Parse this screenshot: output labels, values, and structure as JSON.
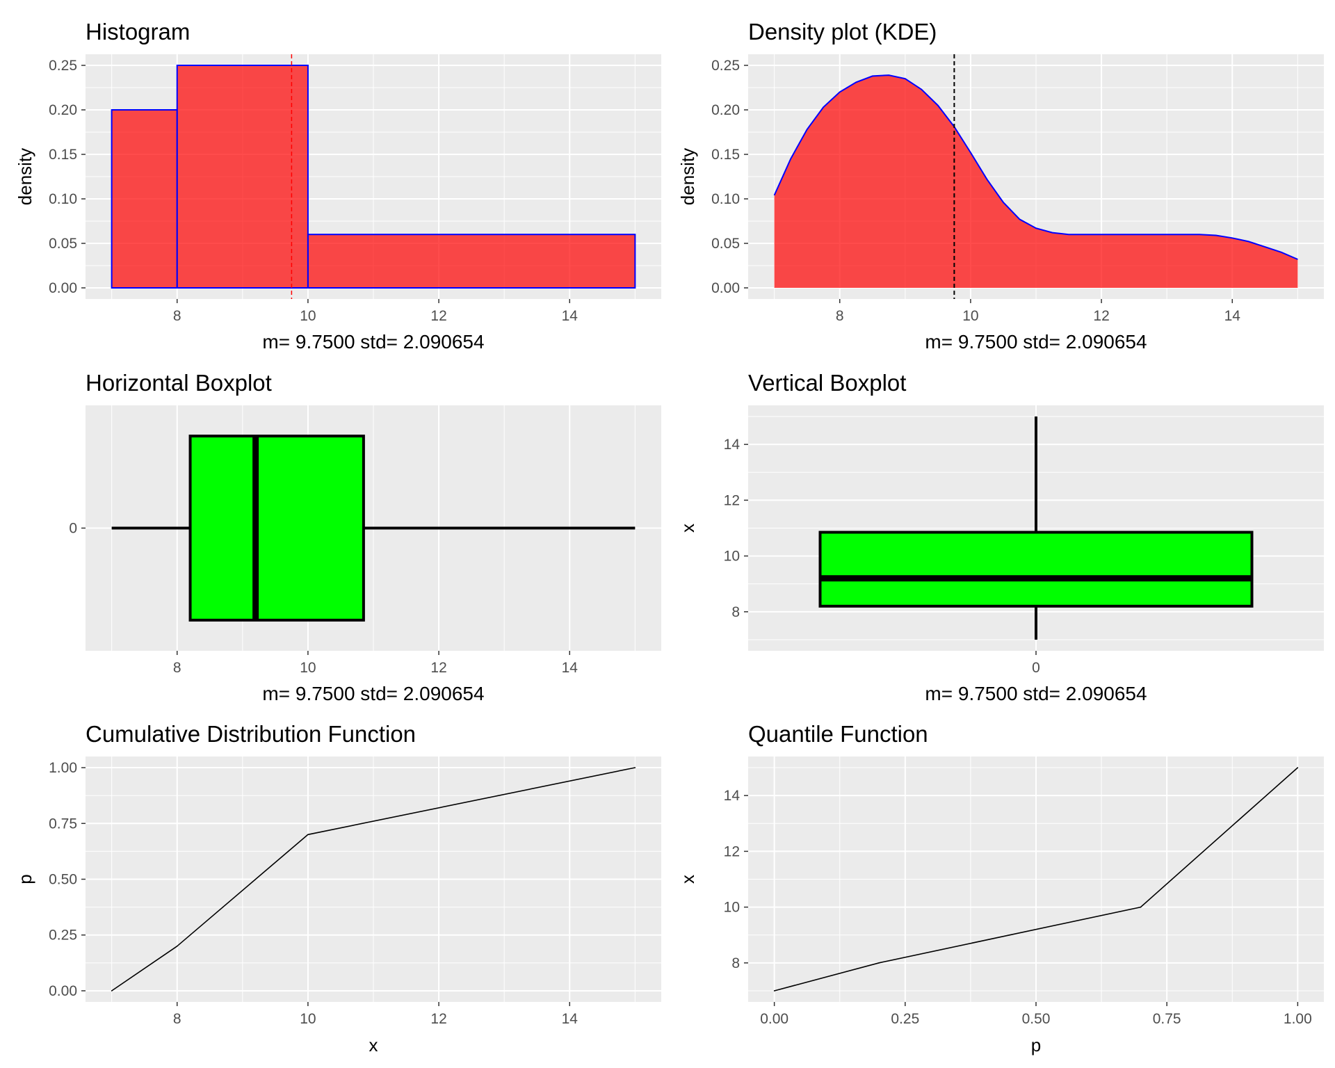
{
  "colors": {
    "panel_bg": "#EBEBEB",
    "grid_major": "#FFFFFF",
    "grid_minor": "#F5F5F5",
    "tick": "#333333",
    "hist_fill": "#FF0000",
    "hist_border": "#0000FF",
    "mean_line_hist": "#FF0000",
    "mean_line_density": "#000000",
    "box_fill": "#00FF00",
    "line": "#000000"
  },
  "chart_data": [
    {
      "id": "histogram",
      "type": "bar",
      "title": "Histogram",
      "xlabel": "m=  9.7500  std=  2.090654",
      "ylabel": "density",
      "xlim": [
        6.6,
        15.4
      ],
      "ylim": [
        -0.0125,
        0.2625
      ],
      "xticks": [
        8,
        10,
        12,
        14
      ],
      "yticks": [
        0.0,
        0.05,
        0.1,
        0.15,
        0.2,
        0.25
      ],
      "ytick_labels": [
        "0.00",
        "0.05",
        "0.10",
        "0.15",
        "0.20",
        "0.25"
      ],
      "bins": [
        {
          "x0": 7,
          "x1": 8,
          "density": 0.2
        },
        {
          "x0": 8,
          "x1": 10,
          "density": 0.25
        },
        {
          "x0": 10,
          "x1": 15,
          "density": 0.06
        }
      ],
      "mean": 9.75,
      "mean_line": "dashed",
      "grid": true
    },
    {
      "id": "density",
      "type": "area",
      "title": "Density plot (KDE)",
      "xlabel": "m=  9.7500  std=  2.090654",
      "ylabel": "density",
      "xlim": [
        6.6,
        15.4
      ],
      "ylim": [
        -0.0125,
        0.2625
      ],
      "xticks": [
        8,
        10,
        12,
        14
      ],
      "yticks": [
        0.0,
        0.05,
        0.1,
        0.15,
        0.2,
        0.25
      ],
      "ytick_labels": [
        "0.00",
        "0.05",
        "0.10",
        "0.15",
        "0.20",
        "0.25"
      ],
      "x": [
        7.0,
        7.25,
        7.5,
        7.75,
        8.0,
        8.25,
        8.5,
        8.75,
        9.0,
        9.25,
        9.5,
        9.75,
        10.0,
        10.25,
        10.5,
        10.75,
        11.0,
        11.25,
        11.5,
        11.75,
        12.0,
        12.5,
        13.0,
        13.5,
        13.75,
        14.0,
        14.25,
        14.5,
        14.75,
        15.0
      ],
      "y": [
        0.104,
        0.145,
        0.178,
        0.203,
        0.22,
        0.231,
        0.238,
        0.239,
        0.235,
        0.223,
        0.205,
        0.181,
        0.152,
        0.122,
        0.096,
        0.077,
        0.067,
        0.062,
        0.06,
        0.06,
        0.06,
        0.06,
        0.06,
        0.06,
        0.059,
        0.056,
        0.052,
        0.046,
        0.04,
        0.032
      ],
      "mean": 9.75,
      "mean_line": "dashed",
      "grid": true
    },
    {
      "id": "hboxplot",
      "type": "boxplot",
      "title": "Horizontal Boxplot",
      "xlabel": "m=  9.7500  std=  2.090654",
      "orientation": "horizontal",
      "xlim": [
        6.6,
        15.4
      ],
      "xticks": [
        8,
        10,
        12,
        14
      ],
      "category_label": "0",
      "whisker_low": 7.0,
      "q1": 8.2,
      "median": 9.2,
      "q3": 10.85,
      "whisker_high": 15.0,
      "grid": true
    },
    {
      "id": "vboxplot",
      "type": "boxplot",
      "title": "Vertical Boxplot",
      "xlabel": "m=  9.7500  std=  2.090654",
      "ylabel": "x",
      "orientation": "vertical",
      "ylim": [
        6.6,
        15.4
      ],
      "yticks": [
        8,
        10,
        12,
        14
      ],
      "category_label": "0",
      "whisker_low": 7.0,
      "q1": 8.2,
      "median": 9.2,
      "q3": 10.85,
      "whisker_high": 15.0,
      "grid": true
    },
    {
      "id": "cdf",
      "type": "line",
      "title": "Cumulative Distribution Function",
      "xlabel": "x",
      "ylabel": "p",
      "xlim": [
        6.6,
        15.4
      ],
      "ylim": [
        -0.05,
        1.05
      ],
      "xticks": [
        8,
        10,
        12,
        14
      ],
      "yticks": [
        0.0,
        0.25,
        0.5,
        0.75,
        1.0
      ],
      "ytick_labels": [
        "0.00",
        "0.25",
        "0.50",
        "0.75",
        "1.00"
      ],
      "x": [
        7,
        8,
        10,
        15
      ],
      "y": [
        0.0,
        0.2,
        0.7,
        1.0
      ],
      "grid": true
    },
    {
      "id": "quantile",
      "type": "line",
      "title": "Quantile Function",
      "xlabel": "p",
      "ylabel": "x",
      "xlim": [
        -0.05,
        1.05
      ],
      "ylim": [
        6.6,
        15.4
      ],
      "xticks": [
        0.0,
        0.25,
        0.5,
        0.75,
        1.0
      ],
      "xtick_labels": [
        "0.00",
        "0.25",
        "0.50",
        "0.75",
        "1.00"
      ],
      "yticks": [
        8,
        10,
        12,
        14
      ],
      "x": [
        0.0,
        0.2,
        0.7,
        1.0
      ],
      "y": [
        7,
        8,
        10,
        15
      ],
      "grid": true
    }
  ]
}
